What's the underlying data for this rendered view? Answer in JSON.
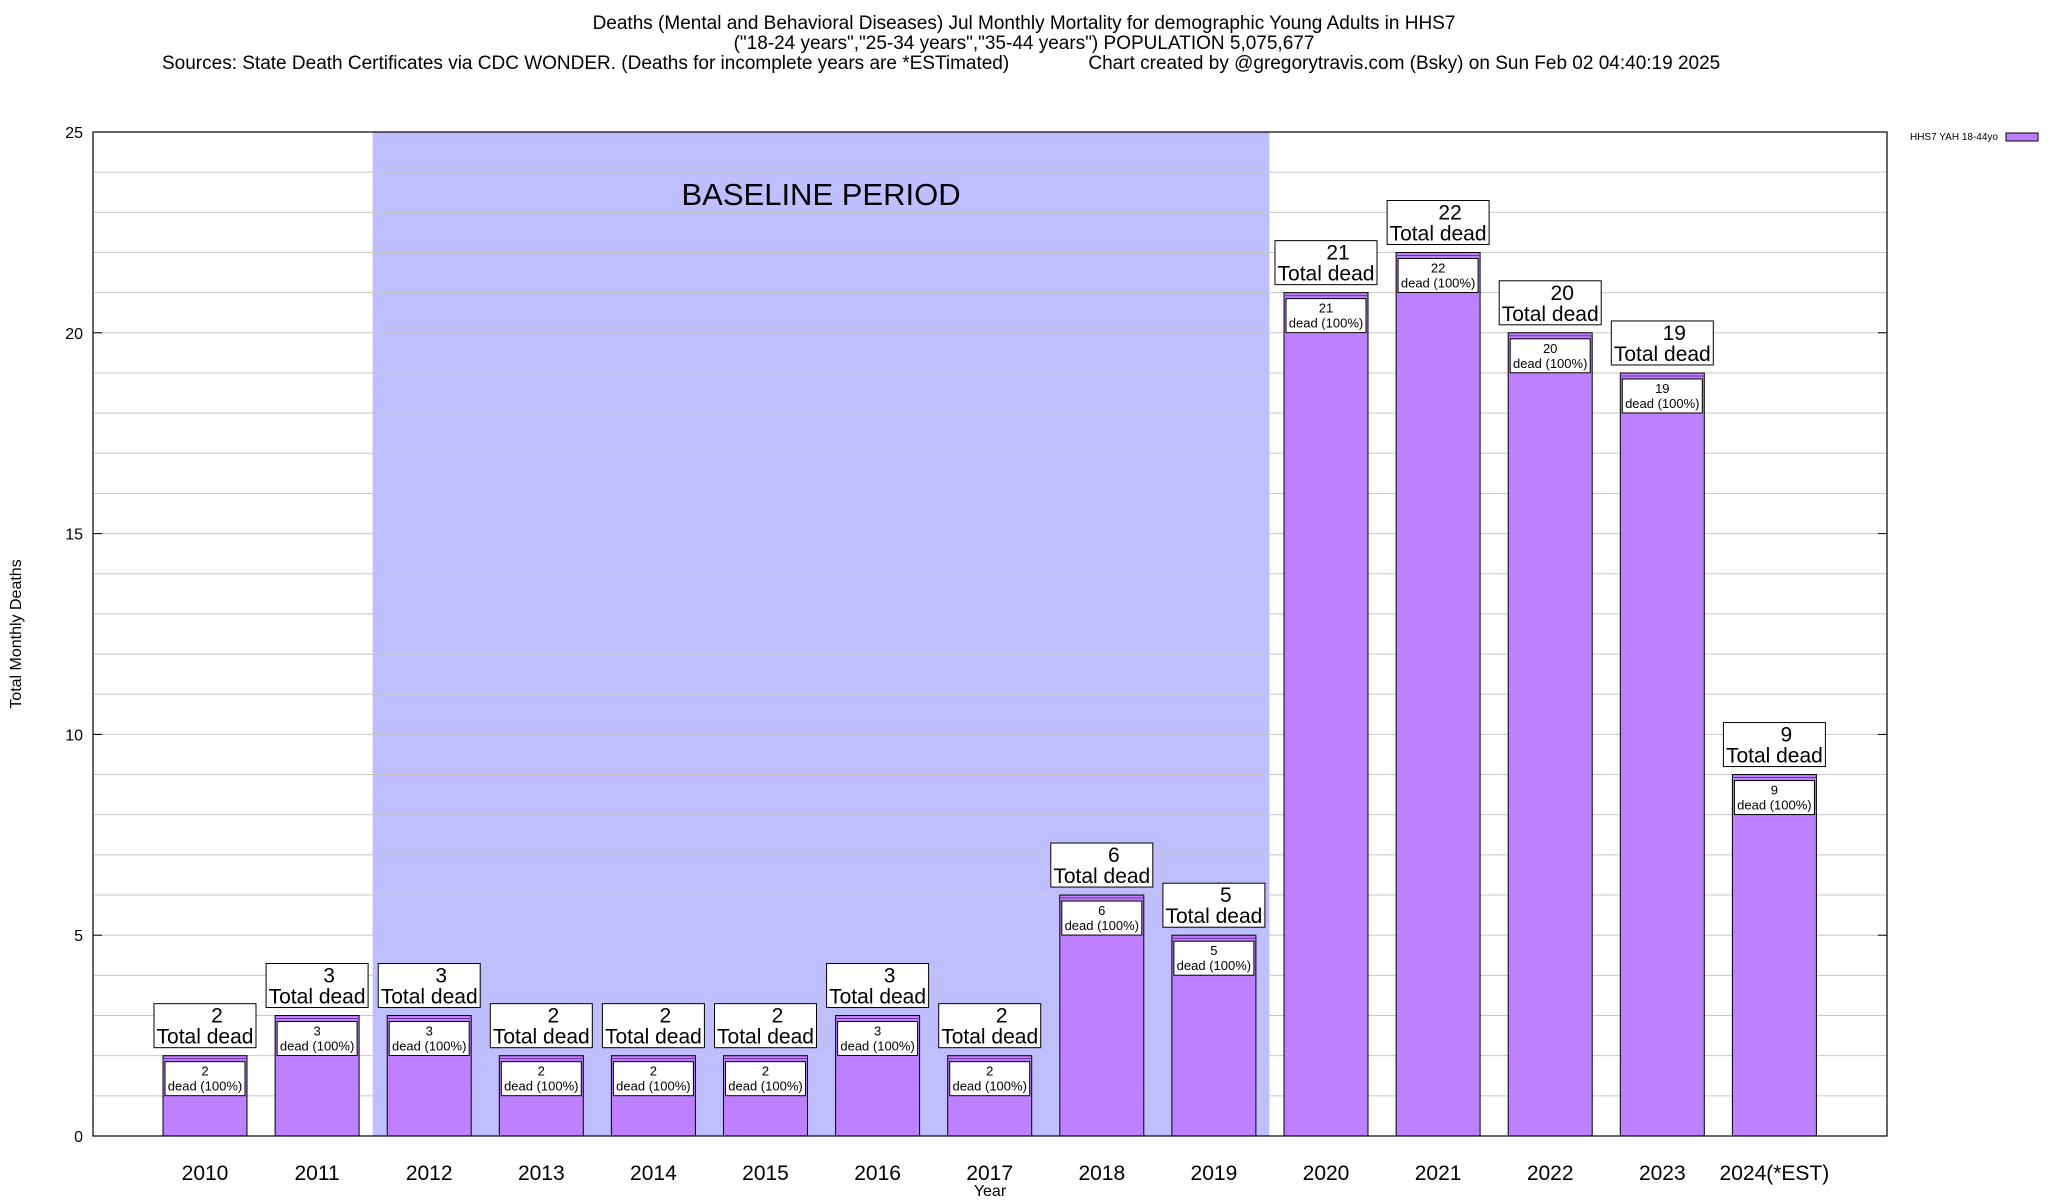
{
  "chart_data": {
    "type": "bar",
    "title": "Deaths (Mental and Behavioral Diseases) Jul Monthly Mortality for demographic Young Adults in HHS7",
    "subtitle": "(\"18-24 years\",\"25-34 years\",\"35-44 years\") POPULATION 5,075,677",
    "sources": "Sources: State Death Certificates via CDC WONDER. (Deaths for incomplete years are *ESTimated)",
    "credit": "Chart created by @gregorytravis.com (Bsky) on Sun Feb 02 04:40:19 2025",
    "xlabel": "Year",
    "ylabel": "Total Monthly Deaths",
    "ylim": [
      0,
      25
    ],
    "yticks": [
      0,
      5,
      10,
      15,
      20,
      25
    ],
    "grid": true,
    "legend_position": "top-right",
    "categories": [
      "2010",
      "2011",
      "2012",
      "2013",
      "2014",
      "2015",
      "2016",
      "2017",
      "2018",
      "2019",
      "2020",
      "2021",
      "2022",
      "2023",
      "2024(*EST)"
    ],
    "series": [
      {
        "name": "HHS7 YAH 18-44yo",
        "values": [
          2,
          3,
          3,
          2,
          2,
          2,
          3,
          2,
          6,
          5,
          21,
          22,
          20,
          19,
          9
        ],
        "color": "#bf80ff"
      }
    ],
    "total_label": "Total dead",
    "inner_label": "dead (100%)",
    "baseline_band": {
      "label": "BASELINE PERIOD",
      "from_category": "2012",
      "to_category": "2019",
      "color": "#bfbfff"
    }
  }
}
